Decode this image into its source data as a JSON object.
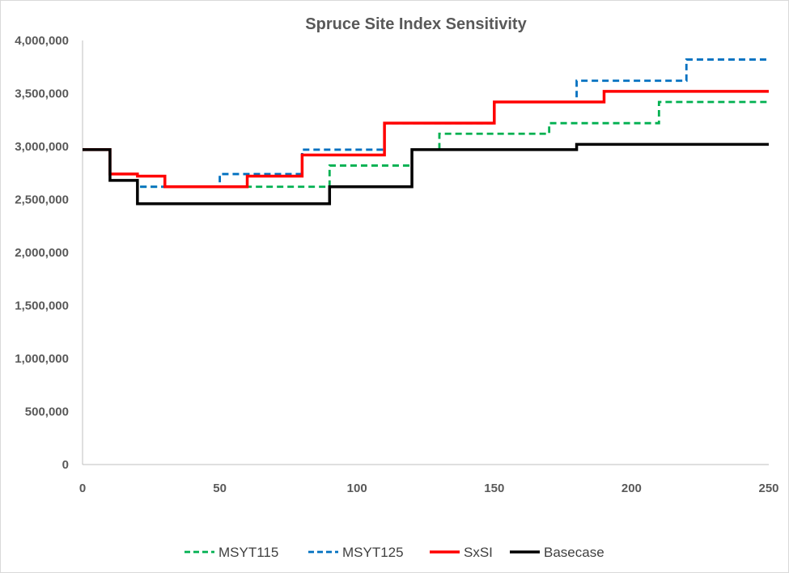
{
  "chart_data": {
    "type": "line",
    "step": true,
    "title": "Spruce Site Index Sensitivity",
    "xlim": [
      0,
      250
    ],
    "ylim": [
      0,
      4000000
    ],
    "x_ticks": [
      0,
      50,
      100,
      150,
      200,
      250
    ],
    "y_ticks": [
      0,
      500000,
      1000000,
      1500000,
      2000000,
      2500000,
      3000000,
      3500000,
      4000000
    ],
    "x_tick_labels": [
      "0",
      "50",
      "100",
      "150",
      "200",
      "250"
    ],
    "y_tick_labels": [
      "0",
      "500,000",
      "1,000,000",
      "1,500,000",
      "2,000,000",
      "2,500,000",
      "3,000,000",
      "3,500,000",
      "4,000,000"
    ],
    "grid": false,
    "legend_position": "bottom",
    "series": [
      {
        "name": "MSYT115",
        "color": "#00b050",
        "dash": "dashed",
        "x": [
          0,
          10,
          20,
          30,
          60,
          90,
          120,
          130,
          170,
          210,
          250
        ],
        "y": [
          2970000,
          2740000,
          2620000,
          2620000,
          2620000,
          2820000,
          2970000,
          3120000,
          3220000,
          3420000,
          3420000
        ]
      },
      {
        "name": "MSYT125",
        "color": "#0070c0",
        "dash": "dashed",
        "x": [
          0,
          10,
          20,
          30,
          50,
          80,
          110,
          120,
          150,
          180,
          220,
          250
        ],
        "y": [
          2970000,
          2740000,
          2620000,
          2620000,
          2740000,
          2970000,
          3220000,
          3220000,
          3420000,
          3620000,
          3820000,
          3820000
        ]
      },
      {
        "name": "SxSI",
        "color": "#ff0000",
        "dash": "solid",
        "x": [
          0,
          10,
          20,
          30,
          60,
          80,
          110,
          150,
          190,
          250
        ],
        "y": [
          2970000,
          2740000,
          2720000,
          2620000,
          2720000,
          2920000,
          3220000,
          3420000,
          3520000,
          3520000
        ]
      },
      {
        "name": "Basecase",
        "color": "#000000",
        "dash": "solid",
        "x": [
          0,
          10,
          20,
          90,
          120,
          180,
          250
        ],
        "y": [
          2970000,
          2680000,
          2460000,
          2620000,
          2970000,
          3020000,
          3020000
        ]
      }
    ]
  }
}
